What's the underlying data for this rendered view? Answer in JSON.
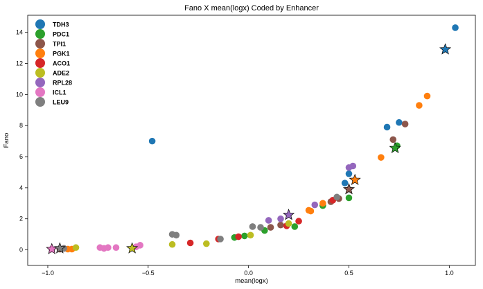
{
  "chart_data": {
    "type": "scatter",
    "title": "Fano X mean(logx) Coded by Enhancer",
    "xlabel": "mean(logx)",
    "ylabel": "Fano",
    "xlim": [
      -1.1,
      1.13
    ],
    "ylim": [
      -1.0,
      15.1
    ],
    "xticks": [
      -1.0,
      -0.5,
      0.0,
      0.5,
      1.0
    ],
    "xtick_labels": [
      "−1.0",
      "−0.5",
      "0.0",
      "0.5",
      "1.0"
    ],
    "yticks": [
      0,
      2,
      4,
      6,
      8,
      10,
      12,
      14
    ],
    "ytick_labels": [
      "0",
      "2",
      "4",
      "6",
      "8",
      "10",
      "12",
      "14"
    ],
    "grid": false,
    "legend_position": "top-left",
    "marker": "circle",
    "highlight_marker": "star",
    "series": [
      {
        "name": "TDH3",
        "color": "#1f77b4",
        "points": [
          [
            -0.48,
            7.0
          ],
          [
            0.48,
            4.3
          ],
          [
            0.5,
            4.9
          ],
          [
            0.69,
            7.9
          ],
          [
            0.75,
            8.2
          ],
          [
            1.03,
            14.3
          ]
        ],
        "star": [
          0.98,
          12.9
        ]
      },
      {
        "name": "PDC1",
        "color": "#2ca02c",
        "points": [
          [
            -0.07,
            0.8
          ],
          [
            -0.02,
            0.9
          ],
          [
            0.08,
            1.25
          ],
          [
            0.23,
            1.5
          ],
          [
            0.37,
            2.85
          ],
          [
            0.5,
            3.35
          ],
          [
            0.74,
            6.7
          ]
        ],
        "star": [
          0.73,
          6.55
        ]
      },
      {
        "name": "TPI1",
        "color": "#8c564b",
        "points": [
          [
            -0.94,
            0.05
          ],
          [
            0.11,
            1.45
          ],
          [
            0.16,
            1.6
          ],
          [
            0.41,
            3.1
          ],
          [
            0.45,
            3.3
          ],
          [
            0.72,
            7.1
          ],
          [
            0.78,
            8.1
          ]
        ],
        "star": [
          0.5,
          3.9
        ]
      },
      {
        "name": "PGK1",
        "color": "#ff7f0e",
        "points": [
          [
            -0.9,
            0.05
          ],
          [
            -0.88,
            0.05
          ],
          [
            0.3,
            2.55
          ],
          [
            0.31,
            2.5
          ],
          [
            0.37,
            3.0
          ],
          [
            0.66,
            5.95
          ],
          [
            0.85,
            9.3
          ],
          [
            0.89,
            9.9
          ]
        ],
        "star": [
          0.53,
          4.5
        ]
      },
      {
        "name": "ACO1",
        "color": "#d62728",
        "points": [
          [
            -0.29,
            0.45
          ],
          [
            -0.15,
            0.7
          ],
          [
            -0.05,
            0.85
          ],
          [
            0.19,
            1.55
          ],
          [
            0.25,
            1.85
          ],
          [
            0.42,
            3.2
          ]
        ],
        "star": null
      },
      {
        "name": "ADE2",
        "color": "#bcbd22",
        "points": [
          [
            -0.86,
            0.15
          ],
          [
            -0.38,
            0.35
          ],
          [
            -0.21,
            0.4
          ],
          [
            0.01,
            0.95
          ],
          [
            0.2,
            1.7
          ]
        ],
        "star": [
          -0.58,
          0.1
        ]
      },
      {
        "name": "RPL28",
        "color": "#9467bd",
        "points": [
          [
            0.1,
            1.9
          ],
          [
            0.16,
            2.0
          ],
          [
            0.33,
            2.9
          ],
          [
            0.5,
            5.3
          ],
          [
            0.52,
            5.4
          ]
        ],
        "star": [
          0.2,
          2.25
        ]
      },
      {
        "name": "ICL1",
        "color": "#e377c2",
        "points": [
          [
            -0.98,
            0.05
          ],
          [
            -0.92,
            0.1
          ],
          [
            -0.74,
            0.15
          ],
          [
            -0.72,
            0.1
          ],
          [
            -0.7,
            0.15
          ],
          [
            -0.66,
            0.15
          ],
          [
            -0.56,
            0.2
          ],
          [
            -0.54,
            0.3
          ]
        ],
        "star": [
          -0.98,
          0.05
        ]
      },
      {
        "name": "LEU9",
        "color": "#7f7f7f",
        "points": [
          [
            -0.92,
            0.1
          ],
          [
            -0.38,
            1.0
          ],
          [
            -0.36,
            0.95
          ],
          [
            -0.14,
            0.7
          ],
          [
            0.02,
            1.5
          ],
          [
            0.06,
            1.45
          ],
          [
            0.44,
            3.4
          ]
        ],
        "star": [
          -0.94,
          0.1
        ]
      }
    ]
  }
}
